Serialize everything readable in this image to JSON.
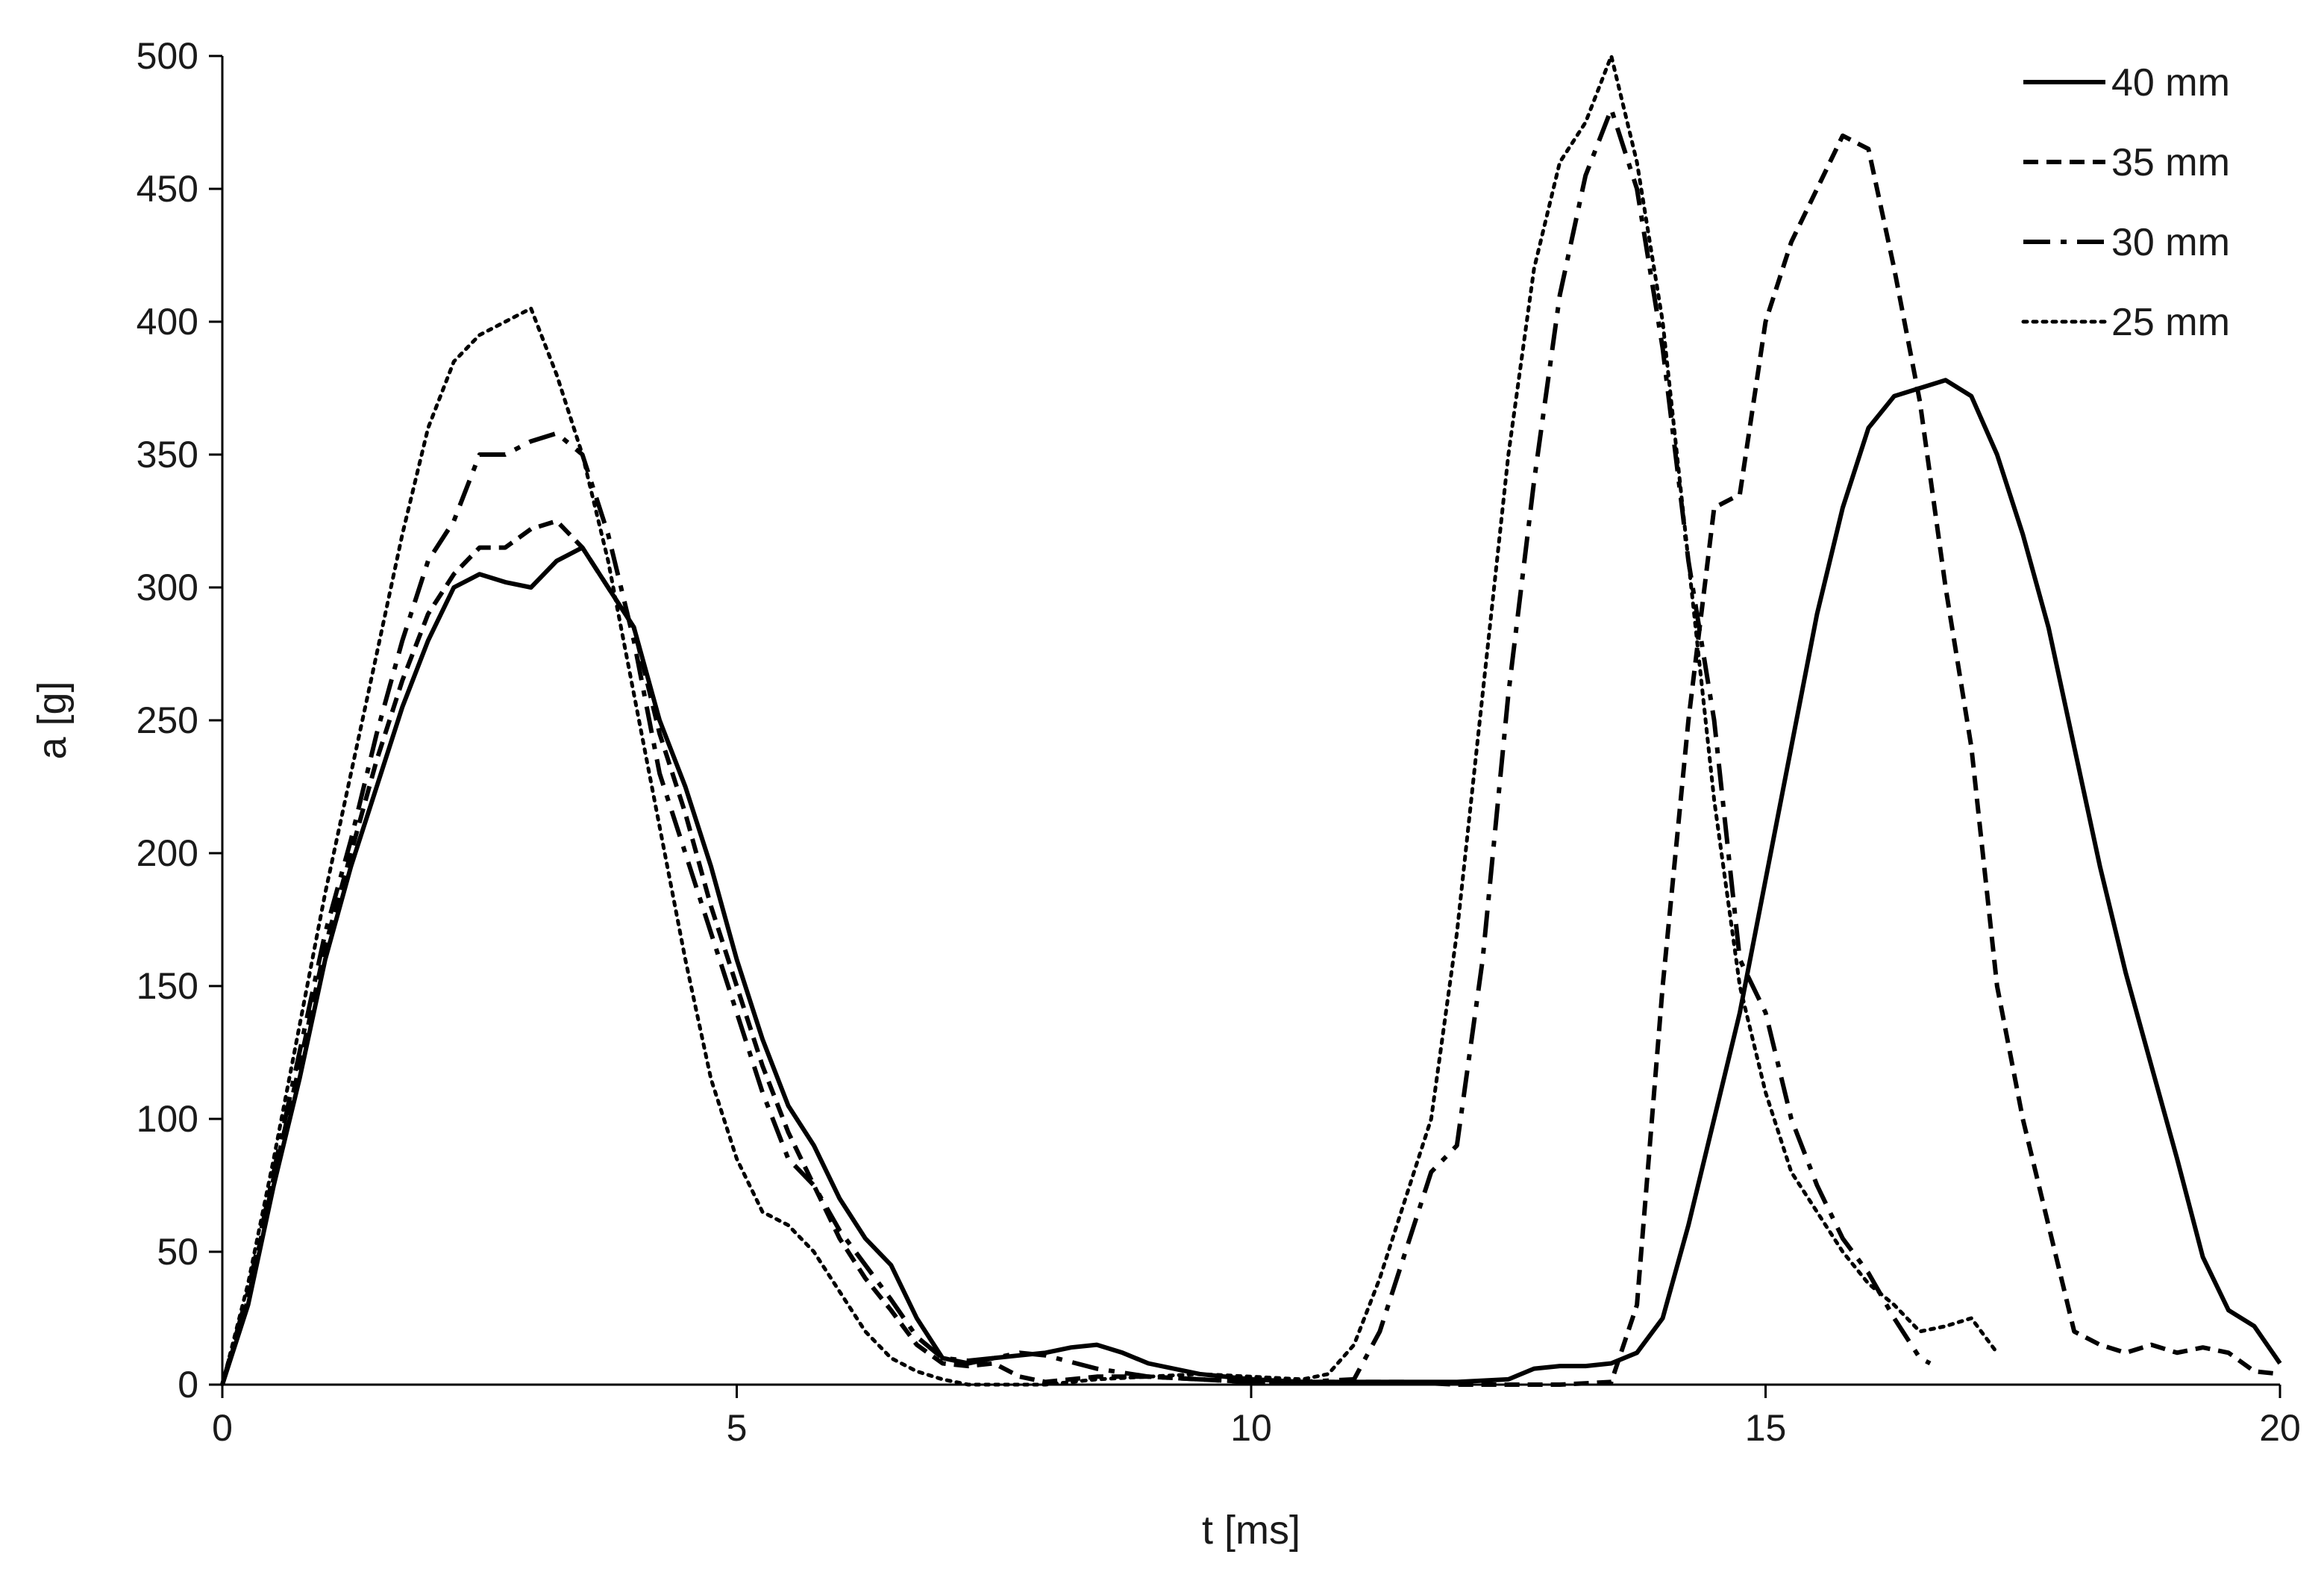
{
  "chart_data": {
    "type": "line",
    "title": "",
    "xlabel": "t [ms]",
    "ylabel": "a [g]",
    "xlim": [
      0,
      20
    ],
    "ylim": [
      0,
      500
    ],
    "xticks": [
      0,
      5,
      10,
      15,
      20
    ],
    "yticks": [
      0,
      50,
      100,
      150,
      200,
      250,
      300,
      350,
      400,
      450,
      500
    ],
    "grid": false,
    "legend_position": "top-right",
    "series": [
      {
        "name": "40 mm",
        "dash": "solid",
        "x": [
          0,
          0.25,
          0.5,
          0.75,
          1,
          1.25,
          1.5,
          1.75,
          2,
          2.25,
          2.5,
          2.75,
          3,
          3.25,
          3.5,
          3.75,
          4,
          4.25,
          4.5,
          4.75,
          5,
          5.25,
          5.5,
          5.75,
          6,
          6.25,
          6.5,
          6.75,
          7,
          7.25,
          7.5,
          7.75,
          8,
          8.25,
          8.5,
          8.75,
          9,
          9.5,
          10,
          10.5,
          11,
          11.5,
          12,
          12.5,
          12.75,
          13,
          13.25,
          13.5,
          13.75,
          14,
          14.25,
          14.5,
          14.75,
          15,
          15.25,
          15.5,
          15.75,
          16,
          16.25,
          16.5,
          16.75,
          17,
          17.25,
          17.5,
          17.75,
          18,
          18.25,
          18.5,
          18.75,
          19,
          19.25,
          19.5,
          19.75,
          20
        ],
        "y": [
          0,
          30,
          75,
          115,
          160,
          195,
          225,
          255,
          280,
          300,
          305,
          302,
          300,
          310,
          315,
          300,
          285,
          250,
          225,
          195,
          160,
          130,
          105,
          90,
          70,
          55,
          45,
          25,
          10,
          8,
          10,
          11,
          12,
          14,
          15,
          12,
          8,
          4,
          2,
          1,
          1,
          1,
          1,
          2,
          6,
          7,
          7,
          8,
          12,
          25,
          60,
          100,
          140,
          190,
          240,
          290,
          330,
          360,
          372,
          375,
          378,
          372,
          350,
          320,
          285,
          240,
          195,
          155,
          120,
          85,
          48,
          28,
          22,
          8
        ]
      },
      {
        "name": "35 mm",
        "dash": "dashed",
        "x": [
          0,
          0.25,
          0.5,
          0.75,
          1,
          1.25,
          1.5,
          1.75,
          2,
          2.25,
          2.5,
          2.75,
          3,
          3.25,
          3.5,
          3.75,
          4,
          4.25,
          4.5,
          4.75,
          5,
          5.25,
          5.5,
          5.75,
          6,
          6.25,
          6.5,
          6.75,
          7,
          7.25,
          7.5,
          7.75,
          8,
          8.5,
          9,
          9.5,
          10,
          10.5,
          11,
          11.5,
          12,
          12.5,
          13,
          13.5,
          13.75,
          14,
          14.25,
          14.5,
          14.75,
          15,
          15.25,
          15.5,
          15.75,
          16,
          16.25,
          16.5,
          16.75,
          17,
          17.25,
          17.5,
          17.75,
          18,
          18.25,
          18.5,
          18.75,
          19,
          19.25,
          19.5,
          19.75,
          20
        ],
        "y": [
          0,
          32,
          78,
          120,
          165,
          200,
          235,
          265,
          290,
          305,
          315,
          315,
          322,
          325,
          315,
          300,
          285,
          245,
          215,
          180,
          150,
          120,
          95,
          75,
          55,
          40,
          28,
          15,
          8,
          7,
          8,
          3,
          1,
          3,
          3,
          2,
          1,
          1,
          1,
          1,
          0,
          0,
          0,
          1,
          30,
          150,
          250,
          330,
          335,
          400,
          430,
          450,
          470,
          465,
          420,
          370,
          300,
          240,
          150,
          100,
          60,
          20,
          15,
          12,
          15,
          12,
          14,
          12,
          5,
          4
        ]
      },
      {
        "name": "30 mm",
        "dash": "dashdot",
        "x": [
          0,
          0.25,
          0.5,
          0.75,
          1,
          1.25,
          1.5,
          1.75,
          2,
          2.25,
          2.5,
          2.75,
          3,
          3.25,
          3.5,
          3.75,
          4,
          4.25,
          4.5,
          4.75,
          5,
          5.25,
          5.5,
          5.75,
          6,
          6.25,
          6.5,
          6.75,
          7,
          7.25,
          7.5,
          7.75,
          8,
          8.5,
          9,
          9.5,
          10,
          10.5,
          11,
          11.25,
          11.5,
          11.75,
          12,
          12.25,
          12.5,
          12.75,
          13,
          13.25,
          13.5,
          13.75,
          14,
          14.25,
          14.5,
          14.75,
          15,
          15.25,
          15.5,
          15.75,
          16,
          16.25,
          16.5,
          16.6
        ],
        "y": [
          0,
          35,
          80,
          125,
          170,
          205,
          245,
          280,
          310,
          325,
          350,
          350,
          355,
          358,
          350,
          320,
          280,
          230,
          200,
          170,
          140,
          110,
          85,
          75,
          58,
          45,
          32,
          18,
          10,
          9,
          10,
          12,
          11,
          6,
          3,
          2,
          1,
          1,
          2,
          20,
          50,
          80,
          90,
          160,
          260,
          340,
          410,
          455,
          480,
          450,
          390,
          310,
          250,
          160,
          140,
          100,
          75,
          55,
          42,
          25,
          10,
          8
        ]
      },
      {
        "name": "25 mm",
        "dash": "dotted",
        "x": [
          0,
          0.25,
          0.5,
          0.75,
          1,
          1.25,
          1.5,
          1.75,
          2,
          2.25,
          2.5,
          2.75,
          3,
          3.25,
          3.5,
          3.75,
          4,
          4.25,
          4.5,
          4.75,
          5,
          5.25,
          5.5,
          5.75,
          6,
          6.25,
          6.5,
          6.75,
          7,
          7.25,
          7.5,
          7.75,
          8,
          8.5,
          9,
          9.5,
          10,
          10.5,
          10.75,
          11,
          11.25,
          11.5,
          11.75,
          12,
          12.25,
          12.5,
          12.75,
          13,
          13.25,
          13.5,
          13.75,
          14,
          14.25,
          14.5,
          14.75,
          15,
          15.25,
          15.5,
          15.75,
          16,
          16.25,
          16.5,
          16.75,
          17,
          17.25
        ],
        "y": [
          0,
          38,
          85,
          135,
          185,
          230,
          275,
          320,
          360,
          385,
          395,
          400,
          405,
          380,
          350,
          310,
          260,
          210,
          160,
          115,
          85,
          65,
          60,
          50,
          35,
          20,
          10,
          5,
          2,
          0,
          0,
          0,
          0,
          2,
          3,
          4,
          3,
          2,
          4,
          15,
          40,
          70,
          100,
          170,
          260,
          350,
          420,
          460,
          475,
          500,
          460,
          400,
          310,
          220,
          150,
          110,
          80,
          65,
          50,
          38,
          30,
          20,
          22,
          25,
          12
        ]
      }
    ]
  }
}
